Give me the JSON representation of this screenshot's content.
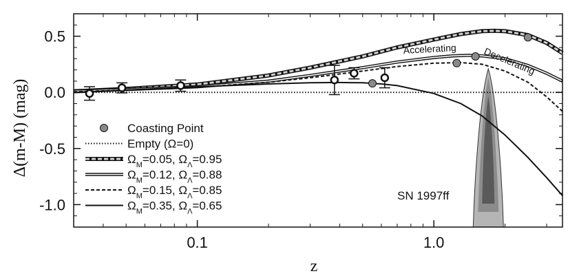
{
  "chart_data": {
    "type": "line",
    "xlabel": "z",
    "ylabel": "Δ(m-M) (mag)",
    "xscale": "log",
    "xlim": [
      0.03,
      3.5
    ],
    "ylim": [
      -1.2,
      0.7
    ],
    "x_ticks": [
      {
        "value": 0.1,
        "label": "0.1"
      },
      {
        "value": 1.0,
        "label": "1.0"
      }
    ],
    "y_ticks": [
      {
        "value": 0.5,
        "label": "0.5"
      },
      {
        "value": 0.0,
        "label": "0.0"
      },
      {
        "value": -0.5,
        "label": "-0.5"
      },
      {
        "value": -1.0,
        "label": "-1.0"
      }
    ],
    "legend_position": "left",
    "legend": [
      {
        "key": "coasting",
        "label": "Coasting Point"
      },
      {
        "key": "empty",
        "label": "Empty (Ω=0)"
      },
      {
        "key": "s005",
        "label": "ΩM=0.05, ΩΛ=0.95"
      },
      {
        "key": "s012",
        "label": "ΩM=0.12, ΩΛ=0.88"
      },
      {
        "key": "s015",
        "label": "ΩM=0.15, ΩΛ=0.85"
      },
      {
        "key": "s035",
        "label": "ΩM=0.35, ΩΛ=0.65"
      }
    ],
    "series": [
      {
        "key": "empty",
        "style": "dotted",
        "x": [
          0.03,
          0.1,
          0.5,
          1.0,
          2.0,
          3.5
        ],
        "y": [
          0,
          0,
          0,
          0,
          0,
          0
        ]
      },
      {
        "key": "s005",
        "style": "double-thick",
        "x": [
          0.03,
          0.05,
          0.1,
          0.2,
          0.3,
          0.5,
          0.7,
          1.0,
          1.3,
          1.6,
          1.8,
          2.0,
          2.5,
          3.0,
          3.5
        ],
        "y": [
          0.01,
          0.03,
          0.07,
          0.15,
          0.22,
          0.32,
          0.4,
          0.47,
          0.52,
          0.545,
          0.548,
          0.545,
          0.51,
          0.44,
          0.35
        ]
      },
      {
        "key": "s012",
        "style": "double",
        "x": [
          0.03,
          0.05,
          0.1,
          0.2,
          0.3,
          0.5,
          0.7,
          1.0,
          1.2,
          1.4,
          1.6,
          2.0,
          2.5,
          3.0,
          3.5
        ],
        "y": [
          0.01,
          0.025,
          0.05,
          0.1,
          0.15,
          0.22,
          0.27,
          0.31,
          0.325,
          0.33,
          0.325,
          0.3,
          0.24,
          0.17,
          0.1
        ]
      },
      {
        "key": "s015",
        "style": "dashed",
        "x": [
          0.03,
          0.05,
          0.1,
          0.2,
          0.3,
          0.5,
          0.7,
          1.0,
          1.3,
          1.6,
          2.0,
          2.5,
          3.0,
          3.5
        ],
        "y": [
          0.005,
          0.02,
          0.045,
          0.09,
          0.13,
          0.19,
          0.23,
          0.26,
          0.265,
          0.25,
          0.19,
          0.09,
          -0.04,
          -0.17
        ]
      },
      {
        "key": "s035",
        "style": "solid",
        "x": [
          0.03,
          0.05,
          0.1,
          0.2,
          0.3,
          0.4,
          0.5,
          0.6,
          0.7,
          1.0,
          1.3,
          1.6,
          2.0,
          2.5,
          3.0,
          3.5
        ],
        "y": [
          0.0,
          0.02,
          0.05,
          0.075,
          0.085,
          0.088,
          0.085,
          0.075,
          0.06,
          -0.01,
          -0.1,
          -0.21,
          -0.38,
          -0.58,
          -0.76,
          -0.92
        ]
      }
    ],
    "data_points": [
      {
        "x": 0.035,
        "y": -0.01,
        "err": 0.06
      },
      {
        "x": 0.048,
        "y": 0.04,
        "err": 0.045
      },
      {
        "x": 0.085,
        "y": 0.06,
        "err": 0.05
      },
      {
        "x": 0.38,
        "y": 0.11,
        "err": 0.13
      },
      {
        "x": 0.46,
        "y": 0.17,
        "err": 0.05
      },
      {
        "x": 0.62,
        "y": 0.13,
        "err": 0.09
      }
    ],
    "coasting_points": [
      {
        "x": 0.55,
        "y": 0.08
      },
      {
        "x": 1.25,
        "y": 0.26
      },
      {
        "x": 1.5,
        "y": 0.32
      },
      {
        "x": 2.5,
        "y": 0.49
      }
    ],
    "annotations": {
      "accelerating": "Accelerating",
      "decelerating": "Decelerating",
      "sn": "SN 1997ff"
    },
    "colors": {
      "coasting_fill": "#8a8a8a",
      "contour_outer": "#b5b5b5",
      "contour_mid": "#8c8c8c",
      "contour_inner": "#5a5a5a"
    }
  }
}
